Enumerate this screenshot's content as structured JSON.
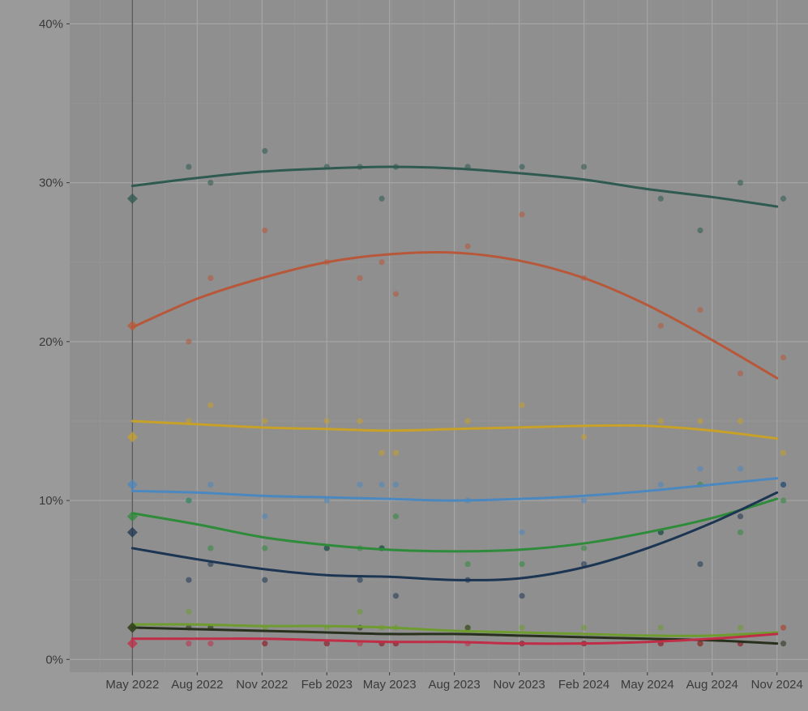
{
  "chart_data": {
    "type": "line",
    "title": "",
    "xlabel": "",
    "ylabel": "",
    "x_axis": {
      "ticks": [
        "2022-05-01",
        "2022-08-01",
        "2022-11-01",
        "2023-02-01",
        "2023-05-01",
        "2023-08-01",
        "2023-11-01",
        "2024-02-01",
        "2024-05-01",
        "2024-08-01",
        "2024-11-01"
      ],
      "tick_labels": [
        "May 2022",
        "Aug 2022",
        "Nov 2022",
        "Feb 2023",
        "May 2023",
        "Aug 2023",
        "Nov 2023",
        "Feb 2024",
        "May 2024",
        "Aug 2024",
        "Nov 2024"
      ],
      "range": [
        "2022-02-01",
        "2024-12-15"
      ]
    },
    "y_axis": {
      "ticks": [
        0,
        10,
        20,
        30,
        40
      ],
      "tick_labels": [
        "0%",
        "10%",
        "20%",
        "30%",
        "40%"
      ],
      "range": [
        -0.8,
        41.5
      ]
    },
    "grid": true,
    "legend": "none",
    "reference_line": {
      "x": "2022-05-01"
    },
    "series": [
      {
        "color": "#2e5a50",
        "start_marker": {
          "x": "2022-05-01",
          "y": 29
        },
        "trend": [
          [
            "2022-05-01",
            29.8
          ],
          [
            "2022-08-01",
            30.3
          ],
          [
            "2022-11-01",
            30.7
          ],
          [
            "2023-02-01",
            30.9
          ],
          [
            "2023-05-01",
            31.0
          ],
          [
            "2023-08-01",
            30.9
          ],
          [
            "2023-11-01",
            30.6
          ],
          [
            "2024-02-01",
            30.2
          ],
          [
            "2024-05-01",
            29.6
          ],
          [
            "2024-08-01",
            29.1
          ],
          [
            "2024-11-01",
            28.5
          ]
        ],
        "points": [
          [
            "2022-07-20",
            31
          ],
          [
            "2022-08-20",
            30
          ],
          [
            "2022-11-05",
            32
          ],
          [
            "2023-02-01",
            31
          ],
          [
            "2023-03-20",
            31
          ],
          [
            "2023-04-20",
            29
          ],
          [
            "2023-05-10",
            31
          ],
          [
            "2023-08-20",
            31
          ],
          [
            "2023-11-05",
            31
          ],
          [
            "2024-02-01",
            31
          ],
          [
            "2024-05-20",
            29
          ],
          [
            "2024-07-15",
            27
          ],
          [
            "2024-09-10",
            30
          ],
          [
            "2024-11-10",
            29
          ]
        ]
      },
      {
        "color": "#b8583a",
        "start_marker": {
          "x": "2022-05-01",
          "y": 21
        },
        "trend": [
          [
            "2022-05-01",
            20.9
          ],
          [
            "2022-08-01",
            22.7
          ],
          [
            "2022-11-01",
            24.0
          ],
          [
            "2023-02-01",
            25.0
          ],
          [
            "2023-05-01",
            25.5
          ],
          [
            "2023-08-01",
            25.6
          ],
          [
            "2023-11-01",
            25.1
          ],
          [
            "2024-02-01",
            24.0
          ],
          [
            "2024-05-01",
            22.3
          ],
          [
            "2024-08-01",
            20.1
          ],
          [
            "2024-11-01",
            17.7
          ]
        ],
        "points": [
          [
            "2022-07-20",
            20
          ],
          [
            "2022-08-20",
            24
          ],
          [
            "2022-11-05",
            27
          ],
          [
            "2023-02-01",
            25
          ],
          [
            "2023-03-20",
            24
          ],
          [
            "2023-04-20",
            25
          ],
          [
            "2023-05-10",
            23
          ],
          [
            "2023-08-20",
            26
          ],
          [
            "2023-11-05",
            28
          ],
          [
            "2024-02-01",
            24
          ],
          [
            "2024-05-20",
            21
          ],
          [
            "2024-07-15",
            22
          ],
          [
            "2024-09-10",
            18
          ],
          [
            "2024-11-10",
            19
          ]
        ]
      },
      {
        "color": "#c8a128",
        "start_marker": {
          "x": "2022-05-01",
          "y": 14
        },
        "trend": [
          [
            "2022-05-01",
            15.0
          ],
          [
            "2022-08-01",
            14.8
          ],
          [
            "2022-11-01",
            14.6
          ],
          [
            "2023-02-01",
            14.5
          ],
          [
            "2023-05-01",
            14.4
          ],
          [
            "2023-08-01",
            14.5
          ],
          [
            "2023-11-01",
            14.6
          ],
          [
            "2024-02-01",
            14.7
          ],
          [
            "2024-05-01",
            14.7
          ],
          [
            "2024-08-01",
            14.4
          ],
          [
            "2024-11-01",
            13.9
          ]
        ],
        "points": [
          [
            "2022-07-20",
            15
          ],
          [
            "2022-08-20",
            16
          ],
          [
            "2022-11-05",
            15
          ],
          [
            "2023-02-01",
            15
          ],
          [
            "2023-03-20",
            15
          ],
          [
            "2023-04-20",
            13
          ],
          [
            "2023-05-10",
            13
          ],
          [
            "2023-08-20",
            15
          ],
          [
            "2023-11-05",
            16
          ],
          [
            "2024-02-01",
            14
          ],
          [
            "2024-05-20",
            15
          ],
          [
            "2024-07-15",
            15
          ],
          [
            "2024-09-10",
            15
          ],
          [
            "2024-11-10",
            13
          ]
        ]
      },
      {
        "color": "#4b88bf",
        "start_marker": {
          "x": "2022-05-01",
          "y": 11
        },
        "trend": [
          [
            "2022-05-01",
            10.6
          ],
          [
            "2022-08-01",
            10.5
          ],
          [
            "2022-11-01",
            10.3
          ],
          [
            "2023-02-01",
            10.2
          ],
          [
            "2023-05-01",
            10.1
          ],
          [
            "2023-08-01",
            10.0
          ],
          [
            "2023-11-01",
            10.1
          ],
          [
            "2024-02-01",
            10.3
          ],
          [
            "2024-05-01",
            10.6
          ],
          [
            "2024-08-01",
            11.0
          ],
          [
            "2024-11-01",
            11.4
          ]
        ],
        "points": [
          [
            "2022-07-20",
            10
          ],
          [
            "2022-08-20",
            11
          ],
          [
            "2022-11-05",
            9
          ],
          [
            "2023-02-01",
            10
          ],
          [
            "2023-03-20",
            11
          ],
          [
            "2023-04-20",
            11
          ],
          [
            "2023-05-10",
            11
          ],
          [
            "2023-08-20",
            10
          ],
          [
            "2023-11-05",
            8
          ],
          [
            "2024-02-01",
            10
          ],
          [
            "2024-05-20",
            11
          ],
          [
            "2024-07-15",
            12
          ],
          [
            "2024-09-10",
            12
          ],
          [
            "2024-11-10",
            11
          ]
        ]
      },
      {
        "color": "#2e8b3a",
        "start_marker": {
          "x": "2022-05-01",
          "y": 9
        },
        "trend": [
          [
            "2022-05-01",
            9.2
          ],
          [
            "2022-08-01",
            8.5
          ],
          [
            "2022-11-01",
            7.7
          ],
          [
            "2023-02-01",
            7.2
          ],
          [
            "2023-05-01",
            6.9
          ],
          [
            "2023-08-01",
            6.8
          ],
          [
            "2023-11-01",
            6.9
          ],
          [
            "2024-02-01",
            7.3
          ],
          [
            "2024-05-01",
            8.0
          ],
          [
            "2024-08-01",
            8.9
          ],
          [
            "2024-11-01",
            10.1
          ]
        ],
        "points": [
          [
            "2022-07-20",
            10
          ],
          [
            "2022-08-20",
            7
          ],
          [
            "2022-11-05",
            7
          ],
          [
            "2023-02-01",
            7
          ],
          [
            "2023-03-20",
            7
          ],
          [
            "2023-04-20",
            7
          ],
          [
            "2023-05-10",
            9
          ],
          [
            "2023-08-20",
            6
          ],
          [
            "2023-11-05",
            6
          ],
          [
            "2024-02-01",
            7
          ],
          [
            "2024-05-20",
            8
          ],
          [
            "2024-07-15",
            11
          ],
          [
            "2024-09-10",
            8
          ],
          [
            "2024-11-10",
            10
          ]
        ]
      },
      {
        "color": "#1c3552",
        "start_marker": {
          "x": "2022-05-01",
          "y": 8
        },
        "trend": [
          [
            "2022-05-01",
            7.0
          ],
          [
            "2022-08-01",
            6.3
          ],
          [
            "2022-11-01",
            5.7
          ],
          [
            "2023-02-01",
            5.3
          ],
          [
            "2023-05-01",
            5.2
          ],
          [
            "2023-08-01",
            5.0
          ],
          [
            "2023-11-01",
            5.1
          ],
          [
            "2024-02-01",
            5.8
          ],
          [
            "2024-05-01",
            7.0
          ],
          [
            "2024-08-01",
            8.6
          ],
          [
            "2024-11-01",
            10.5
          ]
        ],
        "points": [
          [
            "2022-07-20",
            5
          ],
          [
            "2022-08-20",
            6
          ],
          [
            "2022-11-05",
            5
          ],
          [
            "2023-02-01",
            7
          ],
          [
            "2023-03-20",
            5
          ],
          [
            "2023-04-20",
            7
          ],
          [
            "2023-05-10",
            4
          ],
          [
            "2023-08-20",
            5
          ],
          [
            "2023-11-05",
            4
          ],
          [
            "2024-02-01",
            6
          ],
          [
            "2024-05-20",
            8
          ],
          [
            "2024-07-15",
            6
          ],
          [
            "2024-09-10",
            9
          ],
          [
            "2024-11-10",
            11
          ]
        ]
      },
      {
        "color": "#6e9c2e",
        "start_marker": {
          "x": "2022-05-01",
          "y": 2
        },
        "trend": [
          [
            "2022-05-01",
            2.2
          ],
          [
            "2022-08-01",
            2.2
          ],
          [
            "2022-11-01",
            2.1
          ],
          [
            "2023-02-01",
            2.1
          ],
          [
            "2023-05-01",
            2.0
          ],
          [
            "2023-08-01",
            1.8
          ],
          [
            "2023-11-01",
            1.7
          ],
          [
            "2024-02-01",
            1.6
          ],
          [
            "2024-05-01",
            1.5
          ],
          [
            "2024-08-01",
            1.5
          ],
          [
            "2024-11-01",
            1.7
          ]
        ],
        "points": [
          [
            "2022-07-20",
            3
          ],
          [
            "2022-08-20",
            2
          ],
          [
            "2022-11-05",
            2
          ],
          [
            "2023-02-01",
            2
          ],
          [
            "2023-03-20",
            3
          ],
          [
            "2023-04-20",
            2
          ],
          [
            "2023-05-10",
            2
          ],
          [
            "2023-08-20",
            2
          ],
          [
            "2023-11-05",
            2
          ],
          [
            "2024-02-01",
            2
          ],
          [
            "2024-05-20",
            2
          ],
          [
            "2024-07-15",
            1
          ],
          [
            "2024-09-10",
            2
          ],
          [
            "2024-11-10",
            2
          ]
        ]
      },
      {
        "color": "#27301c",
        "start_marker": {
          "x": "2022-05-01",
          "y": 2
        },
        "trend": [
          [
            "2022-05-01",
            2.0
          ],
          [
            "2022-08-01",
            1.9
          ],
          [
            "2022-11-01",
            1.8
          ],
          [
            "2023-02-01",
            1.7
          ],
          [
            "2023-05-01",
            1.6
          ],
          [
            "2023-08-01",
            1.6
          ],
          [
            "2023-11-01",
            1.5
          ],
          [
            "2024-02-01",
            1.4
          ],
          [
            "2024-05-01",
            1.3
          ],
          [
            "2024-08-01",
            1.2
          ],
          [
            "2024-11-01",
            1.0
          ]
        ],
        "points": [
          [
            "2022-07-20",
            2
          ],
          [
            "2022-08-20",
            2
          ],
          [
            "2022-11-05",
            1
          ],
          [
            "2023-02-01",
            1
          ],
          [
            "2023-03-20",
            2
          ],
          [
            "2023-04-20",
            1
          ],
          [
            "2023-05-10",
            1
          ],
          [
            "2023-08-20",
            2
          ],
          [
            "2023-11-05",
            1
          ],
          [
            "2024-02-01",
            1
          ],
          [
            "2024-05-20",
            1
          ],
          [
            "2024-07-15",
            1
          ],
          [
            "2024-09-10",
            1
          ],
          [
            "2024-11-10",
            1
          ]
        ]
      },
      {
        "color": "#c02d47",
        "start_marker": {
          "x": "2022-05-01",
          "y": 1
        },
        "trend": [
          [
            "2022-05-01",
            1.3
          ],
          [
            "2022-08-01",
            1.3
          ],
          [
            "2022-11-01",
            1.3
          ],
          [
            "2023-02-01",
            1.2
          ],
          [
            "2023-05-01",
            1.1
          ],
          [
            "2023-08-01",
            1.1
          ],
          [
            "2023-11-01",
            1.0
          ],
          [
            "2024-02-01",
            1.0
          ],
          [
            "2024-05-01",
            1.1
          ],
          [
            "2024-08-01",
            1.3
          ],
          [
            "2024-11-01",
            1.6
          ]
        ],
        "points": [
          [
            "2022-07-20",
            1
          ],
          [
            "2022-08-20",
            1
          ],
          [
            "2022-11-05",
            1
          ],
          [
            "2023-02-01",
            1
          ],
          [
            "2023-03-20",
            1
          ],
          [
            "2023-04-20",
            1
          ],
          [
            "2023-05-10",
            1
          ],
          [
            "2023-08-20",
            1
          ],
          [
            "2023-11-05",
            1
          ],
          [
            "2024-02-01",
            1
          ],
          [
            "2024-05-20",
            1
          ],
          [
            "2024-07-15",
            1
          ],
          [
            "2024-09-10",
            1
          ],
          [
            "2024-11-10",
            2
          ]
        ]
      }
    ]
  }
}
